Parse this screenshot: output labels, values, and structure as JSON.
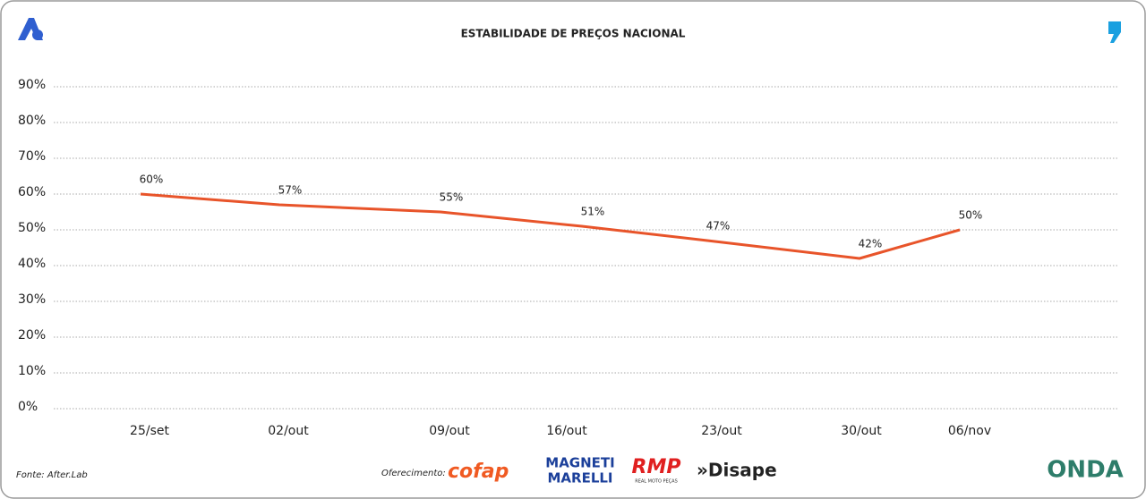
{
  "chart_data": {
    "type": "line",
    "title": "ESTABILIDADE DE PREÇOS NACIONAL",
    "categories": [
      "25/set",
      "02/out",
      "09/out",
      "16/out",
      "23/out",
      "30/out",
      "06/nov"
    ],
    "series": [
      {
        "name": "Estabilidade",
        "color": "#e8542a",
        "values": [
          60,
          57,
          55,
          51,
          47,
          42,
          50
        ],
        "value_labels": [
          "60%",
          "57%",
          "55%",
          "51%",
          "47%",
          "42%",
          "50%"
        ]
      }
    ],
    "ylim": [
      0,
      90
    ],
    "yticks": [
      {
        "value": 0,
        "label": "0%"
      },
      {
        "value": 10,
        "label": "10%"
      },
      {
        "value": 20,
        "label": "20%"
      },
      {
        "value": 30,
        "label": "30%"
      },
      {
        "value": 40,
        "label": "40%"
      },
      {
        "value": 50,
        "label": "50%"
      },
      {
        "value": 60,
        "label": "60%"
      },
      {
        "value": 70,
        "label": "70%"
      },
      {
        "value": 80,
        "label": "80%"
      },
      {
        "value": 90,
        "label": "90%"
      }
    ],
    "grid": true
  },
  "footer": {
    "source": "Fonte: After.Lab",
    "sponsor_label": "Oferecimento:",
    "sponsors": [
      "cofap",
      "MAGNETI",
      "MARELLI",
      "RMP",
      "REAL MOTO PEÇAS",
      "»Disape"
    ],
    "brand": "ONDA"
  }
}
